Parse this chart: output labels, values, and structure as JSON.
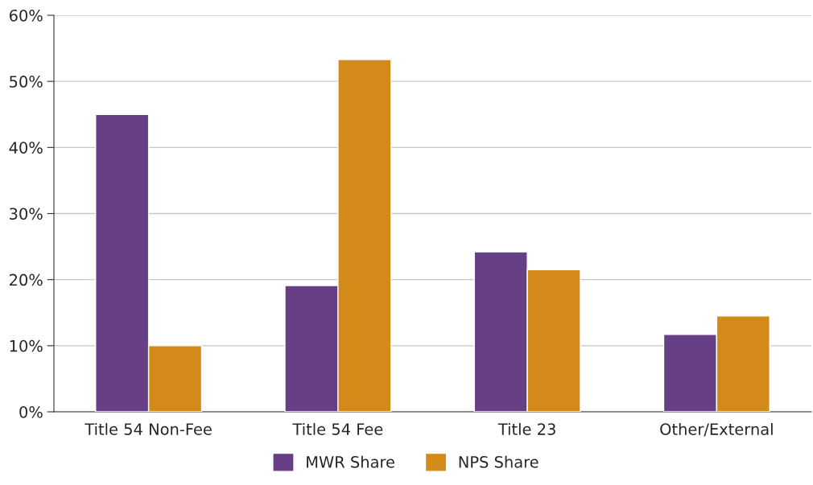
{
  "chart_data": {
    "type": "bar",
    "categories": [
      "Title 54 Non-Fee",
      "Title 54 Fee",
      "Title 23",
      "Other/External"
    ],
    "series": [
      {
        "name": "MWR Share",
        "color": "#663f85",
        "values": [
          45,
          19.1,
          24.2,
          11.7
        ]
      },
      {
        "name": "NPS Share",
        "color": "#d48a19",
        "values": [
          10,
          53.3,
          21.5,
          14.5
        ]
      }
    ],
    "ylim": [
      0,
      60
    ],
    "yticks": [
      {
        "value": 0,
        "label": "0%"
      },
      {
        "value": 10,
        "label": "10%"
      },
      {
        "value": 20,
        "label": "20%"
      },
      {
        "value": 30,
        "label": "30%"
      },
      {
        "value": 40,
        "label": "40%"
      },
      {
        "value": 50,
        "label": "50%"
      },
      {
        "value": 60,
        "label": "60%"
      }
    ],
    "grid": "y",
    "legend": "bottom"
  }
}
